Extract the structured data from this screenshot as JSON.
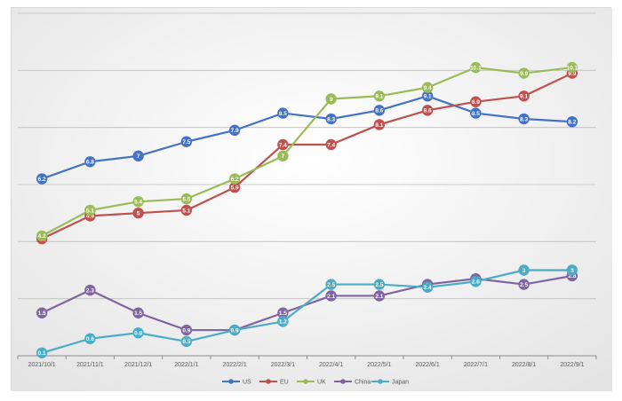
{
  "chart_data": {
    "type": "line",
    "title": "",
    "xlabel": "",
    "ylabel": "",
    "ylim": [
      0,
      12
    ],
    "grid": true,
    "legend": "bottom",
    "categories": [
      "2021/10/1",
      "2021/11/1",
      "2021/12/1",
      "2022/1/1",
      "2022/2/1",
      "2022/3/1",
      "2022/4/1",
      "2022/5/1",
      "2022/6/1",
      "2022/7/1",
      "2022/8/1",
      "2022/9/1"
    ],
    "series": [
      {
        "name": "US",
        "color": "#4472C4",
        "values": [
          6.2,
          6.8,
          7.0,
          7.5,
          7.9,
          8.5,
          8.3,
          8.6,
          9.1,
          8.5,
          8.3,
          8.2
        ],
        "labels": [
          "6.2",
          "6.8",
          "7",
          "7.5",
          "7.9",
          "8.5",
          "8.3",
          "8.6",
          "9.1",
          "8.5",
          "8.3",
          "8.2"
        ]
      },
      {
        "name": "EU",
        "color": "#C0504D",
        "values": [
          4.1,
          4.9,
          5.0,
          5.1,
          5.9,
          7.4,
          7.4,
          8.1,
          8.6,
          8.9,
          9.1,
          9.9
        ],
        "labels": [
          "4.1",
          "4.9",
          "5",
          "5.1",
          "5.9",
          "7.4",
          "7.4",
          "8.1",
          "8.6",
          "8.9",
          "9.1",
          "9.9"
        ]
      },
      {
        "name": "UK",
        "color": "#9BBB59",
        "values": [
          4.2,
          5.1,
          5.4,
          5.5,
          6.2,
          7.0,
          9.0,
          9.1,
          9.4,
          10.1,
          9.9,
          10.1
        ],
        "labels": [
          "4.2",
          "5.1",
          "5.4",
          "5.5",
          "6.2",
          "7",
          "9",
          "9.1",
          "9.4",
          "10.1",
          "9.9",
          "10.1"
        ]
      },
      {
        "name": "China",
        "color": "#8064A2",
        "values": [
          1.5,
          2.3,
          1.5,
          0.9,
          0.9,
          1.5,
          2.1,
          2.1,
          2.5,
          2.7,
          2.5,
          2.8
        ],
        "labels": [
          "1.5",
          "2.3",
          "1.5",
          "0.9",
          "0.9",
          "1.5",
          "2.1",
          "2.1",
          "2.5",
          "2.7",
          "2.5",
          "2.8"
        ]
      },
      {
        "name": "Japan",
        "color": "#4BACC6",
        "values": [
          0.1,
          0.6,
          0.8,
          0.5,
          0.9,
          1.2,
          2.5,
          2.5,
          2.4,
          2.6,
          3.0,
          3.0
        ],
        "labels": [
          "0.1",
          "0.6",
          "0.8",
          "0.5",
          "0.9",
          "1.2",
          "2.5",
          "2.5",
          "2.4",
          "2.6",
          "3",
          "3"
        ]
      }
    ]
  }
}
